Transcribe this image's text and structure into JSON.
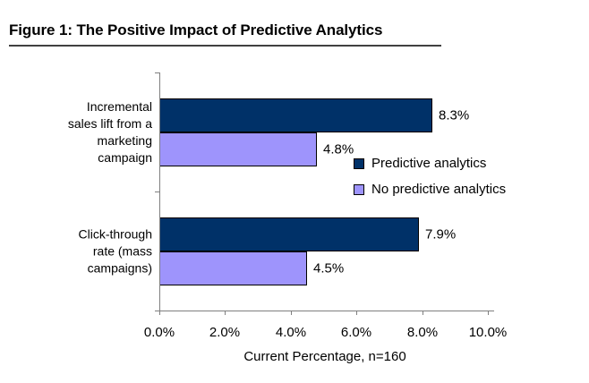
{
  "figure": {
    "title": "Figure 1: The Positive Impact of Predictive Analytics"
  },
  "chart_data": {
    "type": "bar",
    "orientation": "horizontal",
    "title": "Figure 1: The Positive Impact of Predictive Analytics",
    "categories": [
      "Incremental sales lift from a marketing campaign",
      "Click-through rate (mass campaigns)"
    ],
    "category_display": [
      "Incremental\nsales lift from a\nmarketing\ncampaign",
      "Click-through\nrate (mass\ncampaigns)"
    ],
    "series": [
      {
        "name": "Predictive analytics",
        "color": "#003168",
        "values": [
          8.3,
          7.9
        ],
        "labels": [
          "8.3%",
          "7.9%"
        ]
      },
      {
        "name": "No predictive analytics",
        "color": "#9e94fc",
        "values": [
          4.8,
          4.5
        ],
        "labels": [
          "4.8%",
          "4.5%"
        ]
      }
    ],
    "xlabel": "Current Percentage, n=160",
    "ylabel": "",
    "x_ticks": [
      "0.0%",
      "2.0%",
      "4.0%",
      "6.0%",
      "8.0%",
      "10.0%"
    ],
    "xlim": [
      0,
      10
    ],
    "grid": false,
    "legend_position": "inside-right",
    "axis_color": "#7f7f7f"
  }
}
